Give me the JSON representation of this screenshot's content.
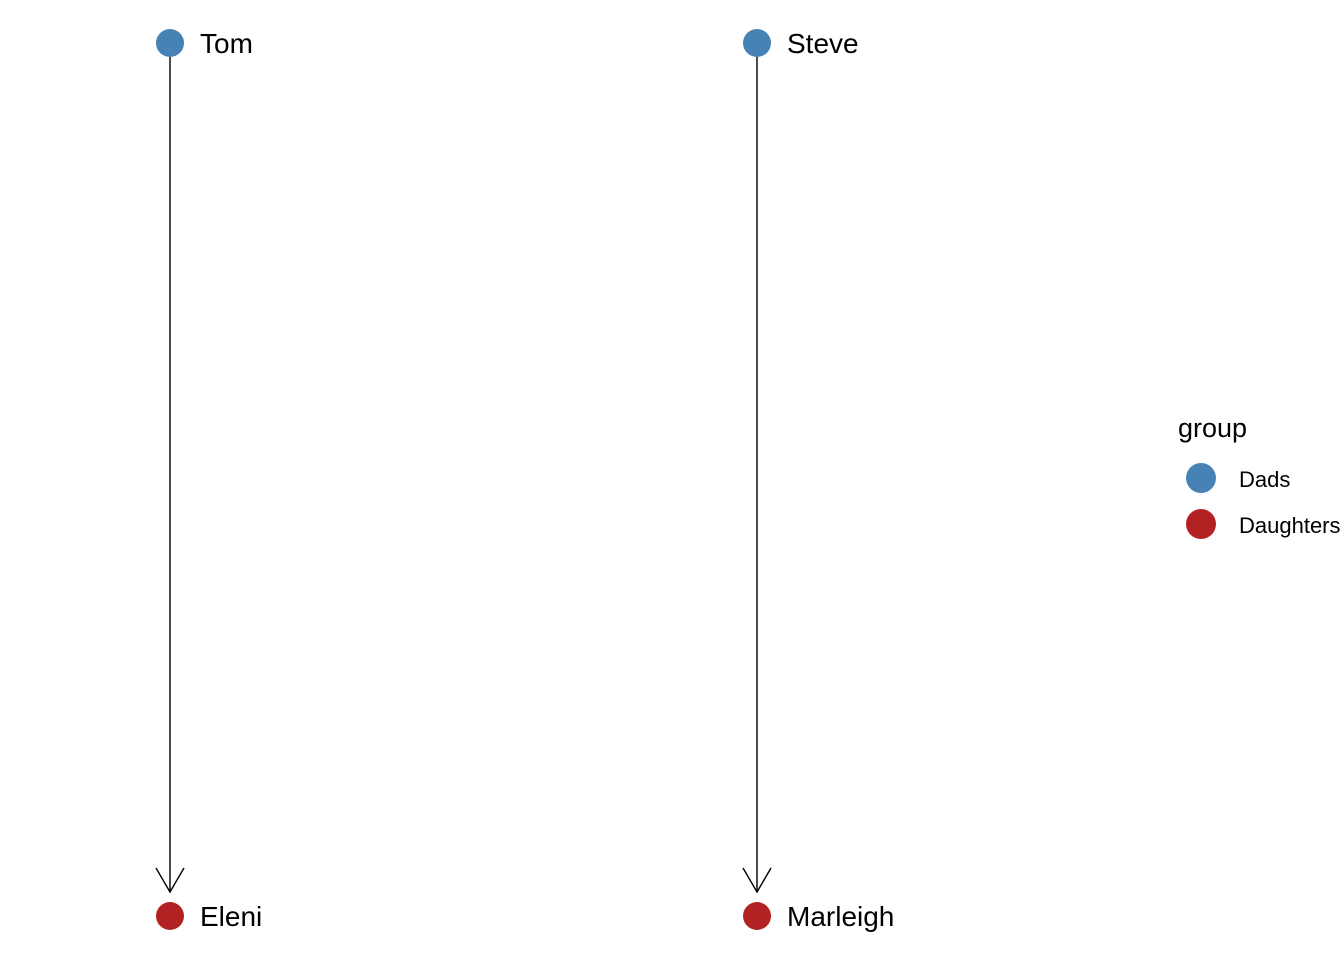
{
  "nodes": [
    {
      "id": "tom",
      "label": "Tom",
      "group": "Dads"
    },
    {
      "id": "steve",
      "label": "Steve",
      "group": "Dads"
    },
    {
      "id": "eleni",
      "label": "Eleni",
      "group": "Daughters"
    },
    {
      "id": "marleigh",
      "label": "Marleigh",
      "group": "Daughters"
    }
  ],
  "edges": [
    {
      "from": "tom",
      "to": "eleni"
    },
    {
      "from": "steve",
      "to": "marleigh"
    }
  ],
  "legend": {
    "title": "group",
    "items": [
      {
        "label": "Dads",
        "color": "#4682B4"
      },
      {
        "label": "Daughters",
        "color": "#B22222"
      }
    ]
  },
  "colors": {
    "Dads": "#4682B4",
    "Daughters": "#B22222",
    "edge": "#000000"
  }
}
